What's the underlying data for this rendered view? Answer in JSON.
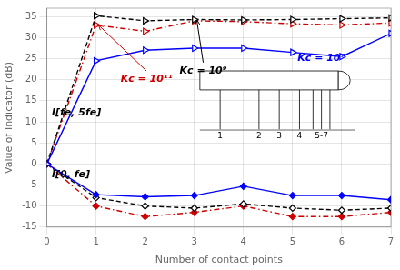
{
  "chart_data": {
    "type": "line",
    "xlabel": "Number of contact points",
    "ylabel": "Value of Indicator (dB)",
    "x": [
      0,
      1,
      2,
      3,
      4,
      5,
      6,
      7
    ],
    "series": [
      {
        "color": "#0000FF",
        "line_style": "solid",
        "marker": "triangle_right_open",
        "values": [
          0,
          24.5,
          27.0,
          27.5,
          27.5,
          26.5,
          25.5,
          31.0
        ]
      },
      {
        "color": "#000000",
        "line_style": "dashed",
        "marker": "triangle_right_open",
        "values": [
          0,
          35.2,
          34.0,
          34.3,
          34.2,
          34.3,
          34.5,
          34.7
        ]
      },
      {
        "color": "#CC0000",
        "line_style": "dashdot",
        "marker": "triangle_right_open",
        "values": [
          0,
          33.0,
          31.5,
          34.0,
          33.8,
          33.3,
          33.0,
          33.5
        ]
      },
      {
        "color": "#0000FF",
        "line_style": "solid",
        "marker": "diamond",
        "values": [
          0,
          -7.3,
          -7.8,
          -7.5,
          -5.3,
          -7.5,
          -7.5,
          -8.5
        ]
      },
      {
        "color": "#000000",
        "line_style": "dashed",
        "marker": "diamond_open",
        "values": [
          0,
          -8.0,
          -10.0,
          -10.5,
          -9.5,
          -10.5,
          -11.0,
          -10.5
        ]
      },
      {
        "color": "#CC0000",
        "line_style": "dashdot",
        "marker": "diamond",
        "values": [
          0,
          -10.0,
          -12.5,
          -11.5,
          -10.0,
          -12.5,
          -12.5,
          -11.5
        ]
      }
    ],
    "xlim": [
      0,
      7
    ],
    "ylim": [
      -15,
      37
    ],
    "xticks": [
      0,
      1,
      2,
      3,
      4,
      5,
      6,
      7
    ],
    "yticks": [
      -15,
      -10,
      -5,
      0,
      5,
      10,
      15,
      20,
      25,
      30,
      35
    ],
    "grid": true,
    "annotations": [
      {
        "text": "Kc = 10⁷",
        "x": 5.1,
        "y": 24.5,
        "color": "#0000FF"
      },
      {
        "text": "Kc = 10⁹",
        "x": 2.7,
        "y": 21.5,
        "color": "#000000",
        "arrow_to": [
          3.05,
          34.2
        ]
      },
      {
        "text": "Kc = 10¹¹",
        "x": 1.5,
        "y": 19.5,
        "color": "#CC0000",
        "arrow_to": [
          1.05,
          33.0
        ]
      },
      {
        "text": "I[fe, 5fe]",
        "x": 0.1,
        "y": 11.5,
        "color": "#000000"
      },
      {
        "text": "I[0, fe]",
        "x": 0.1,
        "y": -3.2,
        "color": "#000000"
      }
    ],
    "inset_labels": [
      "1",
      "2",
      "3",
      "4",
      "5-7"
    ]
  }
}
